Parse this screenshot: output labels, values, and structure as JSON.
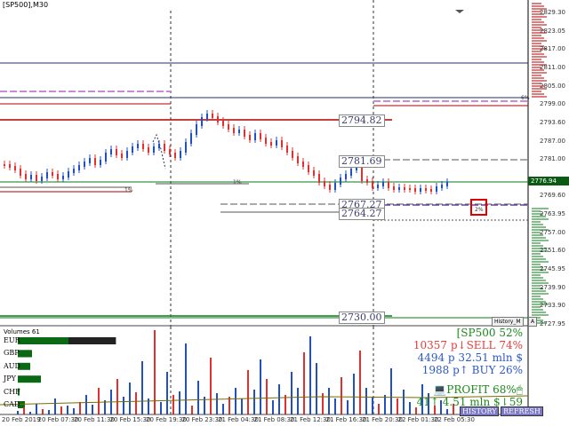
{
  "window": {
    "symbol_tag": "[SP500],M30"
  },
  "price_axis": {
    "labels": [
      "2829.30",
      "2823.05",
      "2817.00",
      "2811.00",
      "2805.00",
      "2799.00",
      "2793.60",
      "2787.00",
      "2781.00",
      "2776.94",
      "2769.60",
      "2763.95",
      "2757.00",
      "2751.60",
      "2745.95",
      "2739.90",
      "2733.90",
      "2727.95"
    ],
    "current_price": "2776.94",
    "pct_label": "6%"
  },
  "time_axis": {
    "labels": [
      "20 Feb 2019",
      "20 Feb 07:30",
      "20 Feb 11:30",
      "20 Feb 15:30",
      "20 Feb 19:30",
      "20 Feb 23:30",
      "21 Feb 04:30",
      "21 Feb 08:30",
      "21 Feb 12:30",
      "21 Feb 16:30",
      "21 Feb 20:30",
      "22 Feb 01:30",
      "22 Feb 05:30"
    ]
  },
  "levels": [
    {
      "value": "2794.82"
    },
    {
      "value": "2781.69"
    },
    {
      "value": "2767.27"
    },
    {
      "value": "2764.27"
    },
    {
      "value": "2730.00"
    }
  ],
  "percent_tags": [
    "1%",
    "1%",
    "2%"
  ],
  "history_button": "History_M",
  "autoscroll_button": "A",
  "volumes": {
    "label": "Volumes 61"
  },
  "currency_strength": [
    {
      "code": "EUR",
      "strength": 0.72
    },
    {
      "code": "GBP",
      "strength": 0.11
    },
    {
      "code": "AUD",
      "strength": 0.1
    },
    {
      "code": "JPY",
      "strength": 0.19
    },
    {
      "code": "CHF",
      "strength": 0.0
    },
    {
      "code": "CAD",
      "strength": 0.06
    }
  ],
  "panel": {
    "header": "[SP500 52%",
    "sell_line": "10357 p↓SELL 74%",
    "volume_line": "4494 p  32.51 mln $",
    "buy_line": "1988 p↑ BUY 26%",
    "profit_line": "💻PROFIT 68%🖱",
    "profit_sub": "41↑  4.51 mln $⇂59",
    "history_btn": "HISTORY",
    "refresh_btn": "REFRESH"
  },
  "colors": {
    "sell": "#e63c3c",
    "buy": "#2b58c8",
    "profit": "#1a8a1a",
    "candle_up": "#2150c0",
    "candle_down": "#e03030",
    "level_red": "#b00000",
    "level_navy": "#23306a",
    "level_green": "#0a7a1a",
    "dash_pink": "#c98ad6"
  }
}
